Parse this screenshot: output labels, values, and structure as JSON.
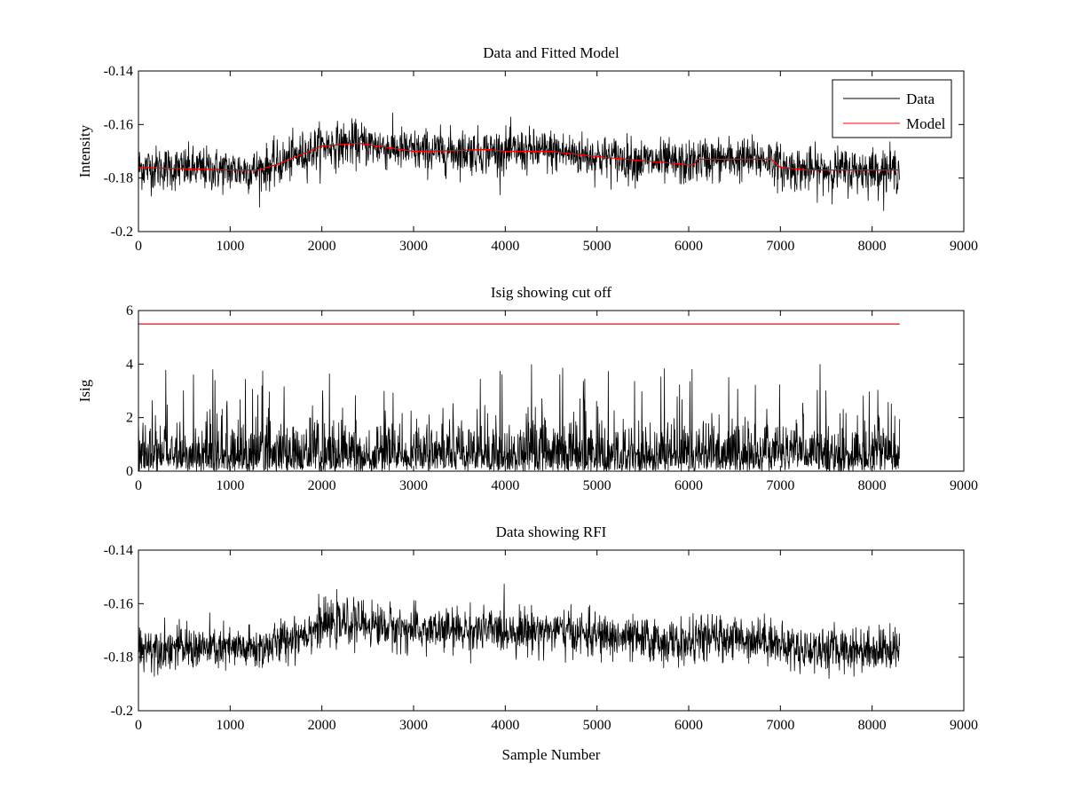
{
  "chart_data": [
    {
      "type": "line",
      "title": "Data and Fitted Model",
      "xlabel": "",
      "ylabel": "Intensity",
      "xlim": [
        0,
        9000
      ],
      "ylim": [
        -0.2,
        -0.14
      ],
      "xticks": [
        "0",
        "1000",
        "2000",
        "3000",
        "4000",
        "5000",
        "6000",
        "7000",
        "8000",
        "9000"
      ],
      "yticks": [
        "-0.2",
        "-0.18",
        "-0.16",
        "-0.14"
      ],
      "legend": {
        "position": "top-right",
        "entries": [
          "Data",
          "Model"
        ]
      },
      "grid": false,
      "series": [
        {
          "name": "Data",
          "color": "#000000",
          "style": "noisy trace around baseline",
          "noise_amplitude": 0.0045,
          "x_range": [
            0,
            8300
          ],
          "baseline": {
            "x": [
              0,
              1000,
              1300,
              1500,
              2000,
              2400,
              3000,
              4000,
              4500,
              5000,
              6000,
              6100,
              6900,
              7000,
              7300,
              8000,
              8300
            ],
            "y": [
              -0.176,
              -0.177,
              -0.177,
              -0.175,
              -0.168,
              -0.167,
              -0.17,
              -0.17,
              -0.17,
              -0.172,
              -0.175,
              -0.173,
              -0.173,
              -0.176,
              -0.177,
              -0.177,
              -0.177
            ]
          }
        },
        {
          "name": "Model",
          "color": "#ff0000",
          "x": [
            0,
            1000,
            1300,
            1500,
            2000,
            2400,
            3000,
            3400,
            3800,
            4000,
            4500,
            5000,
            6000,
            6050,
            6100,
            6900,
            7000,
            7300,
            8000,
            8300
          ],
          "y": [
            -0.176,
            -0.177,
            -0.177,
            -0.175,
            -0.168,
            -0.167,
            -0.17,
            -0.1698,
            -0.1693,
            -0.17,
            -0.17,
            -0.172,
            -0.175,
            -0.175,
            -0.173,
            -0.173,
            -0.176,
            -0.177,
            -0.177,
            -0.177
          ]
        }
      ]
    },
    {
      "type": "line",
      "title": "Isig showing cut off",
      "xlabel": "",
      "ylabel": "Isig",
      "xlim": [
        0,
        9000
      ],
      "ylim": [
        0,
        6
      ],
      "xticks": [
        "0",
        "1000",
        "2000",
        "3000",
        "4000",
        "5000",
        "6000",
        "7000",
        "8000",
        "9000"
      ],
      "yticks": [
        "0",
        "2",
        "4",
        "6"
      ],
      "grid": false,
      "series": [
        {
          "color": "#000000",
          "style": "non-negative noise",
          "x_range": [
            0,
            8300
          ],
          "typical_max": 2.5,
          "peak": 4.0
        },
        {
          "color": "#ff0000",
          "style": "constant cut-off line",
          "x": [
            0,
            8300
          ],
          "y": [
            5.5,
            5.5
          ]
        }
      ]
    },
    {
      "type": "line",
      "title": "Data showing RFI",
      "xlabel": "Sample Number",
      "ylabel": "",
      "xlim": [
        0,
        9000
      ],
      "ylim": [
        -0.2,
        -0.14
      ],
      "xticks": [
        "0",
        "1000",
        "2000",
        "3000",
        "4000",
        "5000",
        "6000",
        "7000",
        "8000",
        "9000"
      ],
      "yticks": [
        "-0.2",
        "-0.18",
        "-0.16",
        "-0.14"
      ],
      "grid": false,
      "series": [
        {
          "color": "#000000",
          "style": "noisy trace around baseline",
          "noise_amplitude": 0.0045,
          "x_range": [
            0,
            8300
          ],
          "baseline": {
            "x": [
              0,
              1000,
              1300,
              1500,
              2000,
              2400,
              3000,
              4000,
              4500,
              5000,
              6000,
              6100,
              6900,
              7000,
              7300,
              8000,
              8300
            ],
            "y": [
              -0.176,
              -0.177,
              -0.177,
              -0.175,
              -0.168,
              -0.167,
              -0.17,
              -0.17,
              -0.17,
              -0.172,
              -0.175,
              -0.173,
              -0.173,
              -0.176,
              -0.177,
              -0.177,
              -0.177
            ]
          }
        }
      ]
    }
  ]
}
